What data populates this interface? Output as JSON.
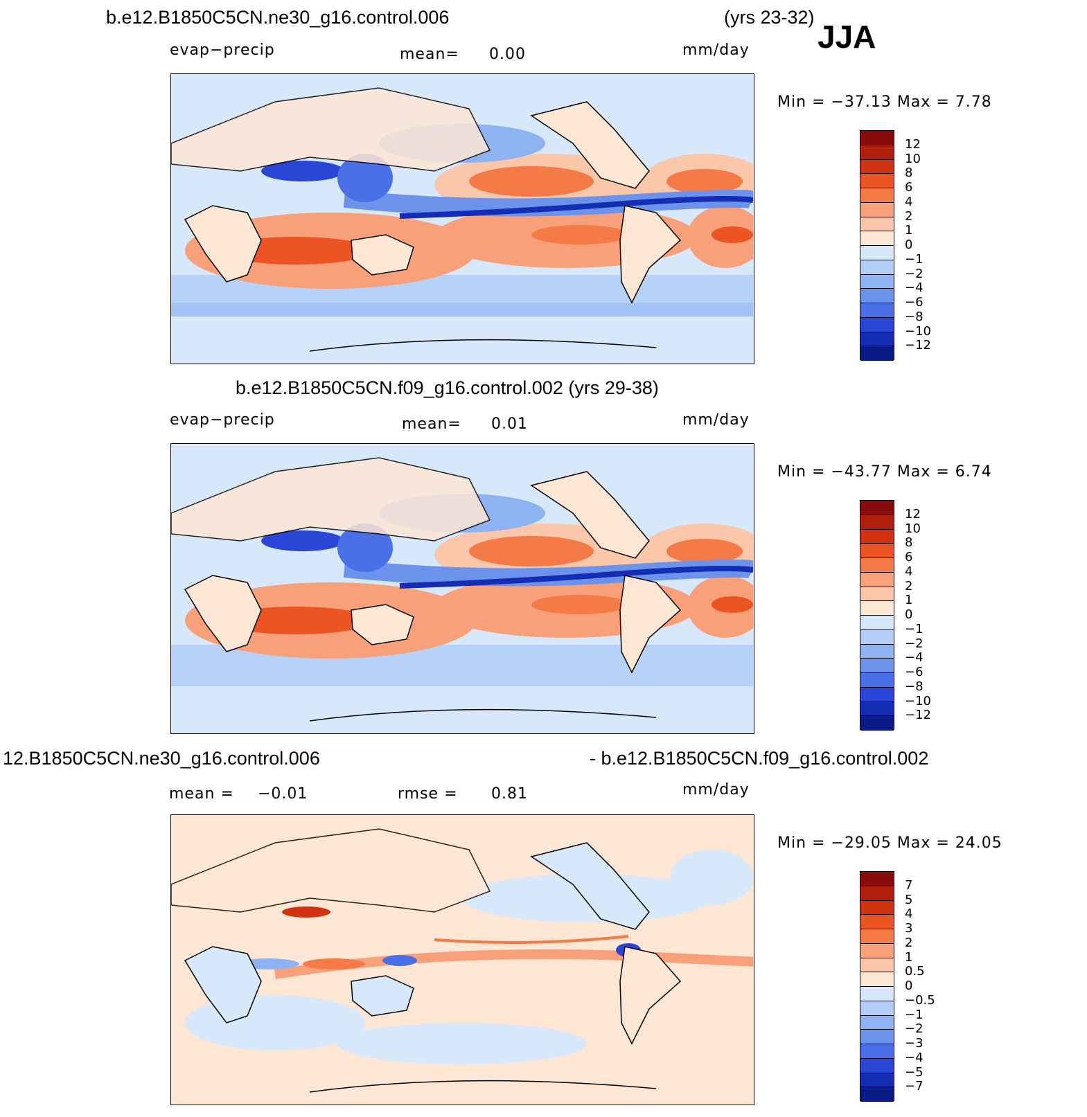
{
  "season": "JJA",
  "panel1": {
    "title_left": "b.e12.B1850C5CN.ne30_g16.control.006",
    "title_right": "(yrs 23-32)",
    "variable": "evap−precip",
    "mean_label": "mean=",
    "mean_value": "0.00",
    "units": "mm/day",
    "min_text": "Min  =  −37.13  Max  =      7.78"
  },
  "panel2": {
    "title": "b.e12.B1850C5CN.f09_g16.control.002 (yrs 29-38)",
    "variable": "evap−precip",
    "mean_label": "mean=",
    "mean_value": "0.01",
    "units": "mm/day",
    "min_text": "Min  =  −43.77  Max  =      6.74"
  },
  "panel3": {
    "title_left": "12.B1850C5CN.ne30_g16.control.006",
    "title_right": "- b.e12.B1850C5CN.f09_g16.control.002",
    "mean_label": "mean  =",
    "mean_value": "−0.01",
    "rmse_label": "rmse  =",
    "rmse_value": "0.81",
    "units": "mm/day",
    "min_text": "Min  =  −29.05  Max  =    24.05"
  },
  "colorbar_main": {
    "labels": [
      "12",
      "10",
      "8",
      "6",
      "4",
      "2",
      "1",
      "0",
      "−1",
      "−2",
      "−4",
      "−6",
      "−8",
      "−10",
      "−12"
    ],
    "colors": [
      "#8b0a0a",
      "#b0200c",
      "#d2320f",
      "#ec5424",
      "#f47a48",
      "#f8a07a",
      "#fbc7aa",
      "#fde6d4",
      "#d7e8fb",
      "#b4cff7",
      "#8fb3f2",
      "#6b93ec",
      "#4a6fe6",
      "#2a46d6",
      "#152cb4",
      "#0a1a86"
    ]
  },
  "colorbar_diff": {
    "labels": [
      "7",
      "5",
      "4",
      "3",
      "2",
      "1",
      "0.5",
      "0",
      "−0.5",
      "−1",
      "−2",
      "−3",
      "−4",
      "−5",
      "−7"
    ],
    "colors": [
      "#8b0a0a",
      "#b0200c",
      "#d2320f",
      "#ec5424",
      "#f47a48",
      "#f8a07a",
      "#fbc7aa",
      "#fde6d4",
      "#d7e8fb",
      "#b4cff7",
      "#8fb3f2",
      "#6b93ec",
      "#4a6fe6",
      "#2a46d6",
      "#152cb4",
      "#0a1a86"
    ]
  },
  "chart_data": [
    {
      "type": "heatmap",
      "title": "b.e12.B1850C5CN.ne30_g16.control.006 (yrs 23-32)",
      "variable": "evap−precip",
      "units": "mm/day",
      "mean": 0.0,
      "min": -37.13,
      "max": 7.78,
      "contour_levels": [
        -12,
        -10,
        -8,
        -6,
        -4,
        -2,
        -1,
        0,
        1,
        2,
        4,
        6,
        8,
        10,
        12
      ]
    },
    {
      "type": "heatmap",
      "title": "b.e12.B1850C5CN.f09_g16.control.002 (yrs 29-38)",
      "variable": "evap−precip",
      "units": "mm/day",
      "mean": 0.01,
      "min": -43.77,
      "max": 6.74,
      "contour_levels": [
        -12,
        -10,
        -8,
        -6,
        -4,
        -2,
        -1,
        0,
        1,
        2,
        4,
        6,
        8,
        10,
        12
      ]
    },
    {
      "type": "heatmap",
      "title": "12.B1850C5CN.ne30_g16.control.006 - b.e12.B1850C5CN.f09_g16.control.002",
      "units": "mm/day",
      "mean": -0.01,
      "rmse": 0.81,
      "min": -29.05,
      "max": 24.05,
      "contour_levels": [
        -7,
        -5,
        -4,
        -3,
        -2,
        -1,
        -0.5,
        0,
        0.5,
        1,
        2,
        3,
        4,
        5,
        7
      ]
    }
  ]
}
